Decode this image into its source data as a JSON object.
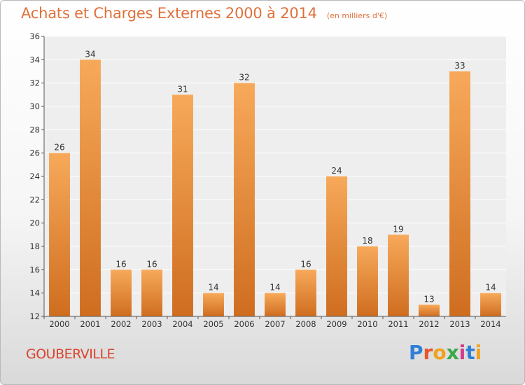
{
  "header": {
    "title": "Achats et Charges Externes 2000 à 2014",
    "subtitle": "(en milliers d'€)"
  },
  "footer": {
    "commune": "GOUBERVILLE",
    "brand": "Proxiti",
    "brand_colors": [
      "#2f7fd6",
      "#e8542c",
      "#f0a21c",
      "#3aa84a",
      "#d23a8a",
      "#2f7fd6",
      "#f0a21c"
    ]
  },
  "colors": {
    "bar_light": "#f7a95a",
    "bar_dark": "#cf6d1f",
    "plot_bg": "#eeeeee",
    "grid": "#ffffff",
    "title": "#e0703a"
  },
  "chart_data": {
    "type": "bar",
    "categories": [
      "2000",
      "2001",
      "2002",
      "2003",
      "2004",
      "2005",
      "2006",
      "2007",
      "2008",
      "2009",
      "2010",
      "2011",
      "2012",
      "2013",
      "2014"
    ],
    "values": [
      26,
      34,
      16,
      16,
      31,
      14,
      32,
      14,
      16,
      24,
      18,
      19,
      13,
      33,
      14
    ],
    "title": "Achats et Charges Externes 2000 à 2014",
    "xlabel": "",
    "ylabel": "",
    "ylim": [
      12,
      36
    ],
    "yticks": [
      12,
      14,
      16,
      18,
      20,
      22,
      24,
      26,
      28,
      30,
      32,
      34,
      36
    ],
    "grid": true,
    "data_labels": true
  }
}
